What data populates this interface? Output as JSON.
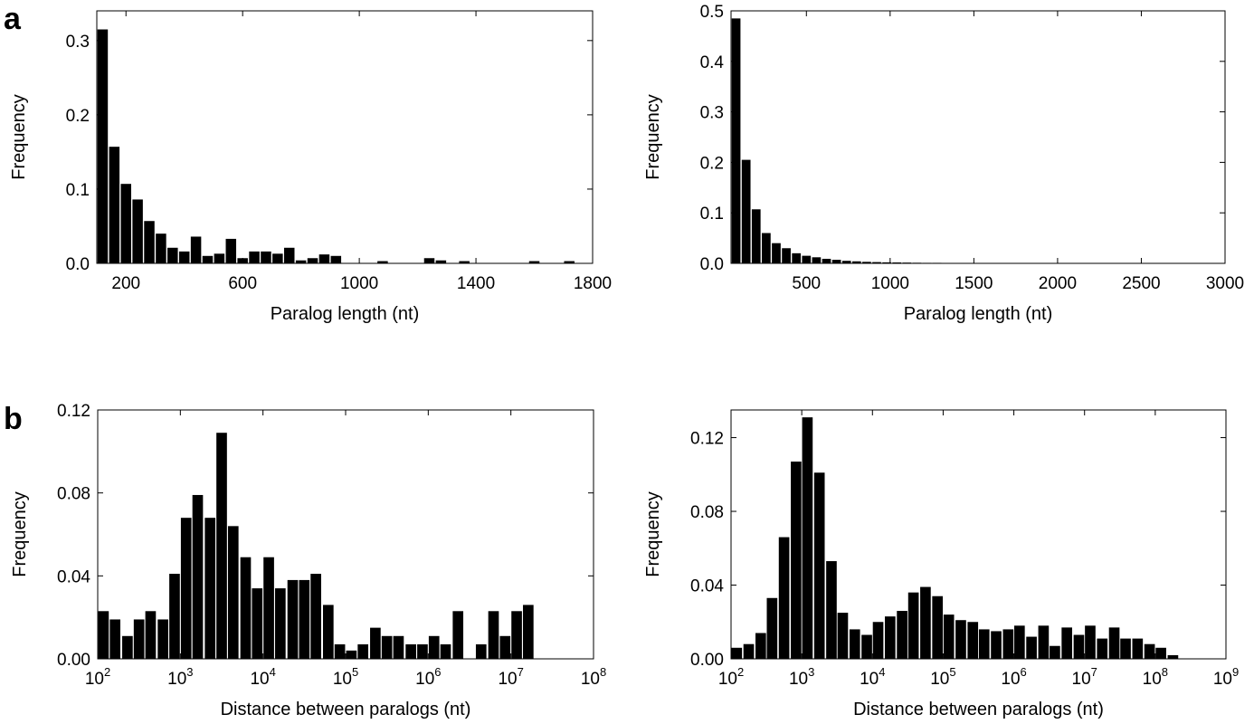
{
  "panel_labels": {
    "a": "a",
    "b": "b"
  },
  "chart_data": [
    {
      "id": "a-left",
      "type": "bar",
      "panel": "a",
      "title": "",
      "xlabel": "Paralog length (nt)",
      "ylabel": "Frequency",
      "xscale": "linear",
      "xlim": [
        100,
        1800
      ],
      "ylim": [
        0,
        0.34
      ],
      "xticks": [
        200,
        600,
        1000,
        1400,
        1800
      ],
      "xtick_labels": [
        "200",
        "600",
        "1000",
        "1400",
        "1800"
      ],
      "yticks": [
        0,
        0.1,
        0.2,
        0.3
      ],
      "ytick_labels": [
        "0.0",
        "0.1",
        "0.2",
        "0.3"
      ],
      "bin_width": 40,
      "x": [
        120,
        160,
        200,
        240,
        280,
        320,
        360,
        400,
        440,
        480,
        520,
        560,
        600,
        640,
        680,
        720,
        760,
        800,
        840,
        880,
        920,
        960,
        1000,
        1040,
        1080,
        1120,
        1160,
        1200,
        1240,
        1280,
        1320,
        1360,
        1400,
        1440,
        1480,
        1520,
        1560,
        1600,
        1640,
        1680,
        1720
      ],
      "values": [
        0.315,
        0.157,
        0.107,
        0.086,
        0.057,
        0.04,
        0.021,
        0.016,
        0.036,
        0.01,
        0.013,
        0.033,
        0.007,
        0.016,
        0.016,
        0.013,
        0.021,
        0.004,
        0.007,
        0.012,
        0.01,
        0,
        0,
        0,
        0.003,
        0,
        0,
        0,
        0.007,
        0.004,
        0,
        0.003,
        0,
        0,
        0,
        0,
        0,
        0.003,
        0,
        0,
        0.003
      ]
    },
    {
      "id": "a-right",
      "type": "bar",
      "panel": "a",
      "title": "",
      "xlabel": "Paralog length (nt)",
      "ylabel": "Frequency",
      "xscale": "linear",
      "xlim": [
        50,
        3000
      ],
      "ylim": [
        0,
        0.5
      ],
      "xticks": [
        500,
        1000,
        1500,
        2000,
        2500,
        3000
      ],
      "xtick_labels": [
        "500",
        "1000",
        "1500",
        "2000",
        "2500",
        "3000"
      ],
      "yticks": [
        0,
        0.1,
        0.2,
        0.3,
        0.4,
        0.5
      ],
      "ytick_labels": [
        "0.0",
        "0.1",
        "0.2",
        "0.3",
        "0.4",
        "0.5"
      ],
      "bin_width": 60,
      "x": [
        80,
        140,
        200,
        260,
        320,
        380,
        440,
        500,
        560,
        620,
        680,
        740,
        800,
        860,
        920,
        980,
        1040,
        1100,
        1160,
        1220,
        1280,
        1340,
        1400,
        1460,
        1520,
        1580,
        1640,
        1700,
        1760,
        1820,
        1880,
        1940
      ],
      "values": [
        0.485,
        0.205,
        0.107,
        0.06,
        0.04,
        0.03,
        0.02,
        0.015,
        0.012,
        0.009,
        0.007,
        0.005,
        0.004,
        0.003,
        0.0025,
        0.002,
        0.0018,
        0.0015,
        0.0012,
        0.001,
        0.001,
        0.0008,
        0.0007,
        0.0006,
        0.0005,
        0.0004,
        0.0004,
        0.0003,
        0.0003,
        0.0002,
        0.0002,
        0.0001
      ]
    },
    {
      "id": "b-left",
      "type": "bar",
      "panel": "b",
      "title": "",
      "xlabel": "Distance between paralogs (nt)",
      "ylabel": "Frequency",
      "xscale": "log",
      "xlim_log10": [
        2,
        8
      ],
      "ylim": [
        0,
        0.12
      ],
      "xticks_log10": [
        2,
        3,
        4,
        5,
        6,
        7,
        8
      ],
      "xtick_labels": [
        "10",
        "10",
        "10",
        "10",
        "10",
        "10",
        "10"
      ],
      "xtick_exponents": [
        "2",
        "3",
        "4",
        "5",
        "6",
        "7",
        "8"
      ],
      "yticks": [
        0,
        0.04,
        0.08,
        0.12
      ],
      "ytick_labels": [
        "0.00",
        "0.04",
        "0.08",
        "0.12"
      ],
      "bin_width_log10": 0.143,
      "x_log10": [
        2.07,
        2.21,
        2.36,
        2.5,
        2.64,
        2.79,
        2.93,
        3.07,
        3.21,
        3.36,
        3.5,
        3.64,
        3.79,
        3.93,
        4.07,
        4.21,
        4.36,
        4.5,
        4.64,
        4.79,
        4.93,
        5.07,
        5.21,
        5.36,
        5.5,
        5.64,
        5.79,
        5.93,
        6.07,
        6.21,
        6.36,
        6.5,
        6.64,
        6.79,
        6.93,
        7.07,
        7.21
      ],
      "values": [
        0.023,
        0.019,
        0.011,
        0.019,
        0.023,
        0.019,
        0.041,
        0.068,
        0.079,
        0.068,
        0.109,
        0.064,
        0.049,
        0.034,
        0.049,
        0.034,
        0.038,
        0.038,
        0.041,
        0.026,
        0.007,
        0.004,
        0.007,
        0.015,
        0.011,
        0.011,
        0.007,
        0.007,
        0.011,
        0.007,
        0.023,
        0,
        0.007,
        0.023,
        0.011,
        0.023,
        0.026
      ]
    },
    {
      "id": "b-right",
      "type": "bar",
      "panel": "b",
      "title": "",
      "xlabel": "Distance between paralogs (nt)",
      "ylabel": "Frequency",
      "xscale": "log",
      "xlim_log10": [
        2,
        9
      ],
      "ylim": [
        0,
        0.135
      ],
      "xticks_log10": [
        2,
        3,
        4,
        5,
        6,
        7,
        8,
        9
      ],
      "xtick_labels": [
        "10",
        "10",
        "10",
        "10",
        "10",
        "10",
        "10",
        "10"
      ],
      "xtick_exponents": [
        "2",
        "3",
        "4",
        "5",
        "6",
        "7",
        "8",
        "9"
      ],
      "yticks": [
        0,
        0.04,
        0.08,
        0.12
      ],
      "ytick_labels": [
        "0.00",
        "0.04",
        "0.08",
        "0.12"
      ],
      "bin_width_log10": 0.167,
      "x_log10": [
        2.08,
        2.25,
        2.42,
        2.58,
        2.75,
        2.92,
        3.08,
        3.25,
        3.42,
        3.58,
        3.75,
        3.92,
        4.08,
        4.25,
        4.42,
        4.58,
        4.75,
        4.92,
        5.08,
        5.25,
        5.42,
        5.58,
        5.75,
        5.92,
        6.08,
        6.25,
        6.42,
        6.58,
        6.75,
        6.92,
        7.08,
        7.25,
        7.42,
        7.58,
        7.75,
        7.92,
        8.08,
        8.25
      ],
      "values": [
        0.006,
        0.008,
        0.014,
        0.033,
        0.066,
        0.107,
        0.131,
        0.101,
        0.053,
        0.025,
        0.016,
        0.013,
        0.02,
        0.023,
        0.026,
        0.036,
        0.039,
        0.034,
        0.024,
        0.021,
        0.02,
        0.016,
        0.015,
        0.016,
        0.018,
        0.012,
        0.018,
        0.007,
        0.017,
        0.013,
        0.018,
        0.011,
        0.017,
        0.011,
        0.011,
        0.008,
        0.006,
        0.002
      ]
    }
  ]
}
